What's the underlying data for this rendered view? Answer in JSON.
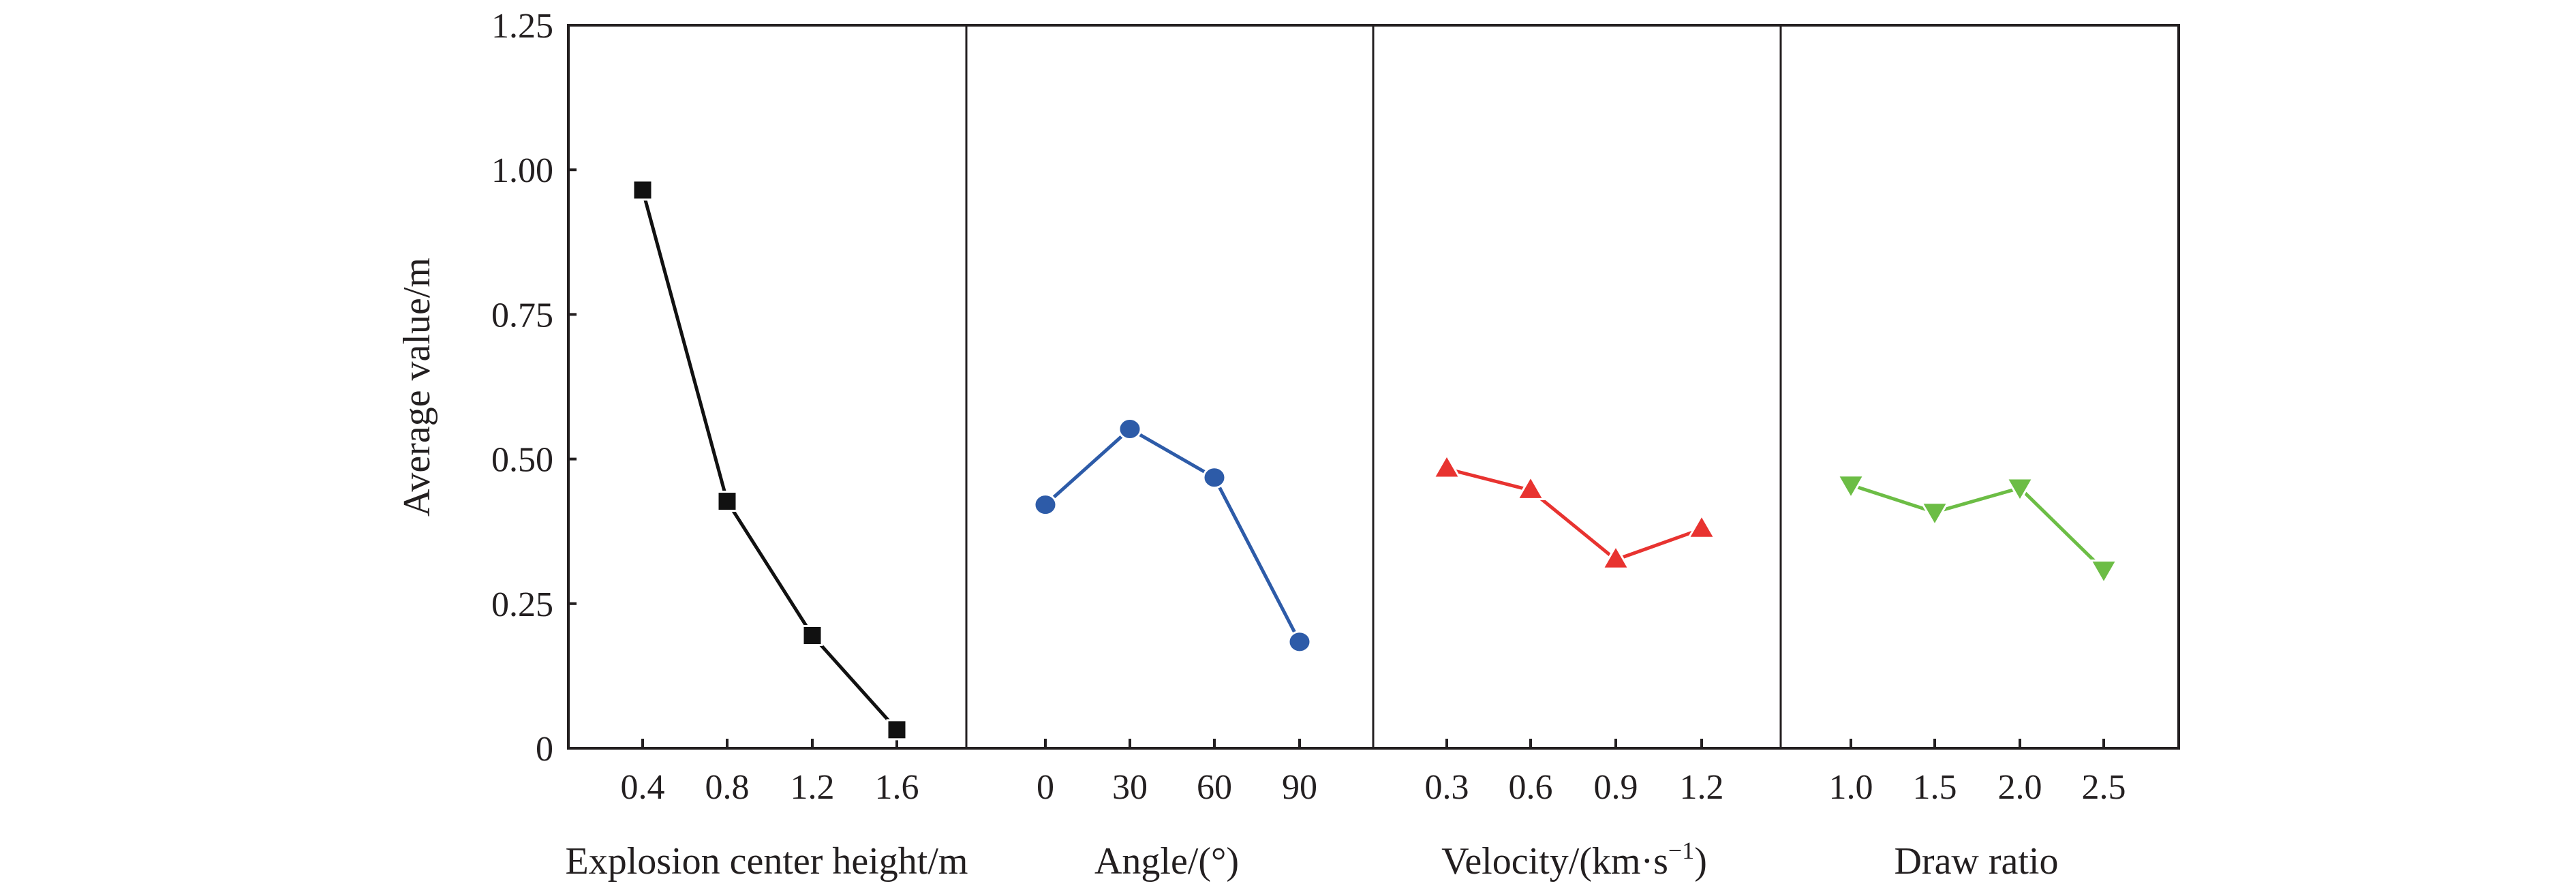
{
  "chart_data": {
    "type": "line",
    "ylabel": "Average value/m",
    "ylim": [
      0,
      1.25
    ],
    "yticks": [
      "0",
      "0.25",
      "0.50",
      "0.75",
      "1.00",
      "1.25"
    ],
    "ytick_values": [
      0,
      0.25,
      0.5,
      0.75,
      1.0,
      1.25
    ],
    "grid": false,
    "legend": "none",
    "panels": [
      {
        "xlabel": "Explosion center height/m",
        "categories": [
          "0.4",
          "0.8",
          "1.2",
          "1.6"
        ],
        "values": [
          0.965,
          0.427,
          0.195,
          0.032
        ],
        "marker": "square",
        "color": "#111111"
      },
      {
        "xlabel": "Angle/(°)",
        "categories": [
          "0",
          "30",
          "60",
          "90"
        ],
        "values": [
          0.421,
          0.552,
          0.468,
          0.184
        ],
        "marker": "circle",
        "color": "#2d5ba8"
      },
      {
        "xlabel_main": "Velocity/(km·s",
        "xlabel_sup": "−1",
        "xlabel_end": ")",
        "xlabel": "Velocity/(km·s−1)",
        "categories": [
          "0.3",
          "0.6",
          "0.9",
          "1.2"
        ],
        "values": [
          0.483,
          0.446,
          0.326,
          0.379
        ],
        "marker": "triangle-up",
        "color": "#e83330"
      },
      {
        "xlabel": "Draw ratio",
        "categories": [
          "1.0",
          "1.5",
          "2.0",
          "2.5"
        ],
        "values": [
          0.455,
          0.408,
          0.45,
          0.308
        ],
        "marker": "triangle-down",
        "color": "#6cbd45"
      }
    ]
  }
}
